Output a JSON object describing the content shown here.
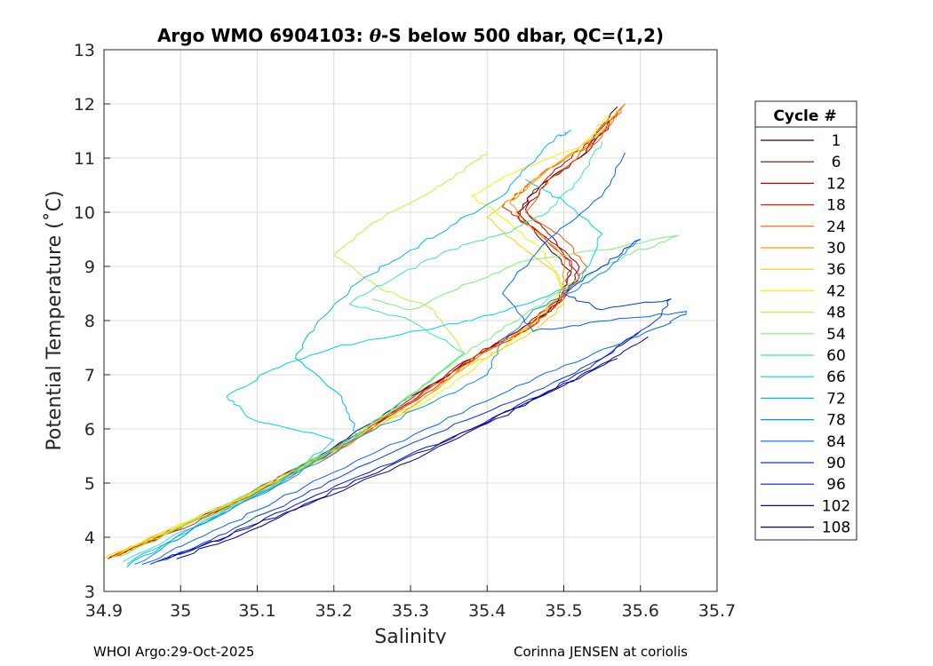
{
  "chart_data": {
    "type": "line",
    "title": "Argo WMO 6904103: θ-S below 500 dbar,  QC=(1,2)",
    "title_parts": {
      "prefix": "Argo WMO 6904103: ",
      "theta": "θ",
      "suffix": "-S below 500 dbar,  QC=(1,2)"
    },
    "xlabel": "Salinity",
    "ylabel": "Potential Temperature (˚C)",
    "xlim": [
      34.9,
      35.7
    ],
    "ylim": [
      3,
      13
    ],
    "xticks": [
      "34.9",
      "35",
      "35.1",
      "35.2",
      "35.3",
      "35.4",
      "35.5",
      "35.6",
      "35.7"
    ],
    "yticks": [
      "3",
      "4",
      "5",
      "6",
      "7",
      "8",
      "9",
      "10",
      "11",
      "12",
      "13"
    ],
    "grid": true,
    "legend": {
      "title": "Cycle #",
      "placement": "right",
      "entries": [
        "1",
        "6",
        "12",
        "18",
        "24",
        "30",
        "36",
        "42",
        "48",
        "54",
        "60",
        "66",
        "72",
        "78",
        "84",
        "90",
        "96",
        "102",
        "108"
      ],
      "colors": [
        "#3a0000",
        "#8a0000",
        "#c80000",
        "#ee1c00",
        "#ff5a00",
        "#ff9600",
        "#ffcc00",
        "#f2f200",
        "#b8f43c",
        "#78f07a",
        "#3ce6b4",
        "#00d2e6",
        "#00b4ff",
        "#0090ff",
        "#0064ff",
        "#0038f0",
        "#0016d0",
        "#0000b4",
        "#00008c"
      ]
    },
    "series": [
      {
        "name": "1",
        "color": "#3a0000",
        "points": [
          [
            34.905,
            3.6
          ],
          [
            34.96,
            3.95
          ],
          [
            35.06,
            4.6
          ],
          [
            35.18,
            5.5
          ],
          [
            35.28,
            6.4
          ],
          [
            35.37,
            7.2
          ],
          [
            35.44,
            7.8
          ],
          [
            35.49,
            8.3
          ],
          [
            35.51,
            8.9
          ],
          [
            35.47,
            9.5
          ],
          [
            35.44,
            10.0
          ],
          [
            35.47,
            10.5
          ],
          [
            35.52,
            11.0
          ],
          [
            35.57,
            11.95
          ]
        ]
      },
      {
        "name": "6",
        "color": "#8a0000",
        "points": [
          [
            34.907,
            3.62
          ],
          [
            34.98,
            4.05
          ],
          [
            35.08,
            4.7
          ],
          [
            35.2,
            5.6
          ],
          [
            35.3,
            6.5
          ],
          [
            35.38,
            7.3
          ],
          [
            35.45,
            7.85
          ],
          [
            35.5,
            8.4
          ],
          [
            35.52,
            9.0
          ],
          [
            35.48,
            9.6
          ],
          [
            35.45,
            10.05
          ],
          [
            35.48,
            10.6
          ],
          [
            35.53,
            11.1
          ],
          [
            35.58,
            12.0
          ]
        ]
      },
      {
        "name": "12",
        "color": "#c80000",
        "points": [
          [
            34.91,
            3.64
          ],
          [
            34.97,
            4.0
          ],
          [
            35.07,
            4.65
          ],
          [
            35.19,
            5.55
          ],
          [
            35.29,
            6.45
          ],
          [
            35.37,
            7.25
          ],
          [
            35.44,
            7.8
          ],
          [
            35.49,
            8.35
          ],
          [
            35.52,
            8.8
          ],
          [
            35.49,
            9.4
          ],
          [
            35.44,
            9.9
          ],
          [
            35.46,
            10.4
          ],
          [
            35.51,
            11.0
          ],
          [
            35.56,
            11.7
          ]
        ]
      },
      {
        "name": "18",
        "color": "#ee1c00",
        "points": [
          [
            34.91,
            3.63
          ],
          [
            34.99,
            4.1
          ],
          [
            35.09,
            4.75
          ],
          [
            35.21,
            5.65
          ],
          [
            35.31,
            6.55
          ],
          [
            35.39,
            7.35
          ],
          [
            35.46,
            7.9
          ],
          [
            35.5,
            8.45
          ],
          [
            35.51,
            9.1
          ],
          [
            35.46,
            9.7
          ],
          [
            35.42,
            10.1
          ],
          [
            35.47,
            10.7
          ],
          [
            35.54,
            11.3
          ],
          [
            35.57,
            11.85
          ]
        ]
      },
      {
        "name": "24",
        "color": "#ff5a00",
        "points": [
          [
            34.905,
            3.6
          ],
          [
            34.97,
            4.0
          ],
          [
            35.08,
            4.7
          ],
          [
            35.2,
            5.6
          ],
          [
            35.3,
            6.5
          ],
          [
            35.38,
            7.3
          ],
          [
            35.45,
            7.8
          ],
          [
            35.5,
            8.4
          ],
          [
            35.53,
            9.0
          ],
          [
            35.5,
            9.5
          ],
          [
            35.45,
            10.0
          ],
          [
            35.48,
            10.6
          ],
          [
            35.55,
            11.4
          ],
          [
            35.58,
            12.0
          ]
        ]
      },
      {
        "name": "30",
        "color": "#ff9600",
        "points": [
          [
            34.91,
            3.65
          ],
          [
            34.98,
            4.08
          ],
          [
            35.1,
            4.8
          ],
          [
            35.22,
            5.7
          ],
          [
            35.32,
            6.6
          ],
          [
            35.39,
            7.35
          ],
          [
            35.45,
            7.85
          ],
          [
            35.5,
            8.5
          ],
          [
            35.5,
            9.2
          ],
          [
            35.45,
            9.8
          ],
          [
            35.43,
            10.2
          ],
          [
            35.48,
            10.8
          ],
          [
            35.55,
            11.5
          ],
          [
            35.58,
            12.0
          ]
        ]
      },
      {
        "name": "36",
        "color": "#ffcc00",
        "points": [
          [
            34.9,
            3.6
          ],
          [
            34.97,
            4.05
          ],
          [
            35.09,
            4.8
          ],
          [
            35.21,
            5.7
          ],
          [
            35.31,
            6.5
          ],
          [
            35.38,
            7.2
          ],
          [
            35.45,
            7.7
          ],
          [
            35.5,
            8.3
          ],
          [
            35.49,
            8.9
          ],
          [
            35.44,
            9.4
          ],
          [
            35.4,
            9.9
          ],
          [
            35.46,
            10.6
          ],
          [
            35.53,
            11.2
          ],
          [
            35.57,
            11.9
          ]
        ]
      },
      {
        "name": "42",
        "color": "#f2f200",
        "points": [
          [
            34.91,
            3.62
          ],
          [
            34.99,
            4.15
          ],
          [
            35.1,
            4.85
          ],
          [
            35.22,
            5.75
          ],
          [
            35.33,
            6.6
          ],
          [
            35.41,
            7.4
          ],
          [
            35.46,
            7.95
          ],
          [
            35.5,
            8.6
          ],
          [
            35.47,
            9.3
          ],
          [
            35.42,
            9.9
          ],
          [
            35.38,
            10.3
          ],
          [
            35.43,
            10.7
          ],
          [
            35.52,
            11.2
          ],
          [
            35.56,
            11.8
          ]
        ]
      },
      {
        "name": "48",
        "color": "#b8f43c",
        "points": [
          [
            34.92,
            3.65
          ],
          [
            35.0,
            4.2
          ],
          [
            35.12,
            5.0
          ],
          [
            35.22,
            5.8
          ],
          [
            35.3,
            6.6
          ],
          [
            35.37,
            7.4
          ],
          [
            35.33,
            8.2
          ],
          [
            35.26,
            8.6
          ],
          [
            35.2,
            9.2
          ],
          [
            35.25,
            9.8
          ],
          [
            35.33,
            10.4
          ],
          [
            35.38,
            10.9
          ],
          [
            35.4,
            11.1
          ]
        ]
      },
      {
        "name": "54",
        "color": "#78f07a",
        "points": [
          [
            34.92,
            3.64
          ],
          [
            35.01,
            4.25
          ],
          [
            35.12,
            5.0
          ],
          [
            35.23,
            5.9
          ],
          [
            35.31,
            6.7
          ],
          [
            35.38,
            7.5
          ],
          [
            35.44,
            8.0
          ],
          [
            35.5,
            8.6
          ],
          [
            35.58,
            9.2
          ],
          [
            35.65,
            9.57
          ],
          [
            35.55,
            9.3
          ],
          [
            35.45,
            9.1
          ],
          [
            35.38,
            8.7
          ],
          [
            35.3,
            8.2
          ],
          [
            35.25,
            8.4
          ]
        ]
      },
      {
        "name": "60",
        "color": "#3ce6b4",
        "points": [
          [
            34.925,
            3.55
          ],
          [
            35.0,
            4.1
          ],
          [
            35.11,
            4.9
          ],
          [
            35.22,
            5.8
          ],
          [
            35.31,
            6.7
          ],
          [
            35.37,
            7.4
          ],
          [
            35.3,
            8.0
          ],
          [
            35.22,
            8.3
          ],
          [
            35.28,
            8.8
          ],
          [
            35.35,
            9.3
          ],
          [
            35.42,
            9.6
          ],
          [
            35.48,
            10.0
          ],
          [
            35.52,
            10.6
          ],
          [
            35.55,
            11.3
          ]
        ]
      },
      {
        "name": "66",
        "color": "#00d2e6",
        "points": [
          [
            34.93,
            3.5
          ],
          [
            35.02,
            4.2
          ],
          [
            35.13,
            5.0
          ],
          [
            35.2,
            5.8
          ],
          [
            35.09,
            6.2
          ],
          [
            35.06,
            6.6
          ],
          [
            35.12,
            7.1
          ],
          [
            35.2,
            7.5
          ],
          [
            35.3,
            7.8
          ],
          [
            35.38,
            8.0
          ],
          [
            35.45,
            8.3
          ],
          [
            35.52,
            8.7
          ],
          [
            35.55,
            9.6
          ],
          [
            35.5,
            10.2
          ],
          [
            35.45,
            10.6
          ]
        ]
      },
      {
        "name": "72",
        "color": "#00b4ff",
        "points": [
          [
            34.93,
            3.45
          ],
          [
            35.02,
            4.2
          ],
          [
            35.13,
            5.0
          ],
          [
            35.23,
            5.9
          ],
          [
            35.21,
            6.6
          ],
          [
            35.15,
            7.3
          ],
          [
            35.18,
            8.0
          ],
          [
            35.24,
            8.8
          ],
          [
            35.3,
            9.3
          ],
          [
            35.36,
            9.8
          ],
          [
            35.42,
            10.3
          ],
          [
            35.45,
            10.8
          ],
          [
            35.49,
            11.4
          ],
          [
            35.51,
            11.5
          ]
        ]
      },
      {
        "name": "78",
        "color": "#0090ff",
        "points": [
          [
            34.94,
            3.5
          ],
          [
            35.03,
            4.25
          ],
          [
            35.14,
            5.05
          ],
          [
            35.24,
            5.9
          ],
          [
            35.33,
            6.5
          ],
          [
            35.4,
            7.0
          ],
          [
            35.42,
            7.6
          ],
          [
            35.46,
            8.2
          ],
          [
            35.52,
            8.6
          ],
          [
            35.57,
            9.1
          ],
          [
            35.6,
            9.5
          ]
        ]
      },
      {
        "name": "84",
        "color": "#0064ff",
        "points": [
          [
            34.95,
            3.5
          ],
          [
            35.01,
            3.9
          ],
          [
            35.1,
            4.5
          ],
          [
            35.2,
            5.2
          ],
          [
            35.32,
            6.0
          ],
          [
            35.44,
            6.8
          ],
          [
            35.54,
            7.4
          ],
          [
            35.63,
            7.9
          ],
          [
            35.66,
            8.17
          ],
          [
            35.56,
            8.0
          ],
          [
            35.46,
            7.8
          ],
          [
            35.42,
            8.5
          ],
          [
            35.48,
            9.5
          ],
          [
            35.55,
            10.3
          ],
          [
            35.58,
            11.1
          ]
        ]
      },
      {
        "name": "90",
        "color": "#0038f0",
        "points": [
          [
            34.96,
            3.5
          ],
          [
            35.04,
            3.95
          ],
          [
            35.12,
            4.5
          ],
          [
            35.22,
            5.2
          ],
          [
            35.33,
            5.9
          ],
          [
            35.45,
            6.6
          ],
          [
            35.55,
            7.3
          ],
          [
            35.62,
            8.0
          ],
          [
            35.64,
            8.4
          ],
          [
            35.55,
            8.2
          ],
          [
            35.5,
            8.5
          ],
          [
            35.55,
            9.0
          ],
          [
            35.6,
            9.5
          ]
        ]
      },
      {
        "name": "96",
        "color": "#0016d0",
        "points": [
          [
            34.97,
            3.55
          ],
          [
            35.05,
            3.95
          ],
          [
            35.15,
            4.6
          ],
          [
            35.26,
            5.3
          ],
          [
            35.38,
            6.0
          ],
          [
            35.48,
            6.7
          ],
          [
            35.55,
            7.3
          ],
          [
            35.6,
            7.8
          ]
        ]
      },
      {
        "name": "102",
        "color": "#0000b4",
        "points": [
          [
            34.98,
            3.6
          ],
          [
            35.06,
            4.0
          ],
          [
            35.16,
            4.6
          ],
          [
            35.27,
            5.3
          ],
          [
            35.38,
            6.0
          ],
          [
            35.47,
            6.6
          ],
          [
            35.55,
            7.2
          ],
          [
            35.61,
            7.7
          ]
        ]
      },
      {
        "name": "108",
        "color": "#00008c",
        "points": [
          [
            34.995,
            3.6
          ],
          [
            35.08,
            4.05
          ],
          [
            35.18,
            4.7
          ],
          [
            35.3,
            5.4
          ],
          [
            35.4,
            6.1
          ],
          [
            35.5,
            6.8
          ],
          [
            35.57,
            7.3
          ]
        ]
      }
    ]
  },
  "footer": {
    "left": "WHOI Argo:29-Oct-2025",
    "right": "Corinna JENSEN at coriolis"
  }
}
